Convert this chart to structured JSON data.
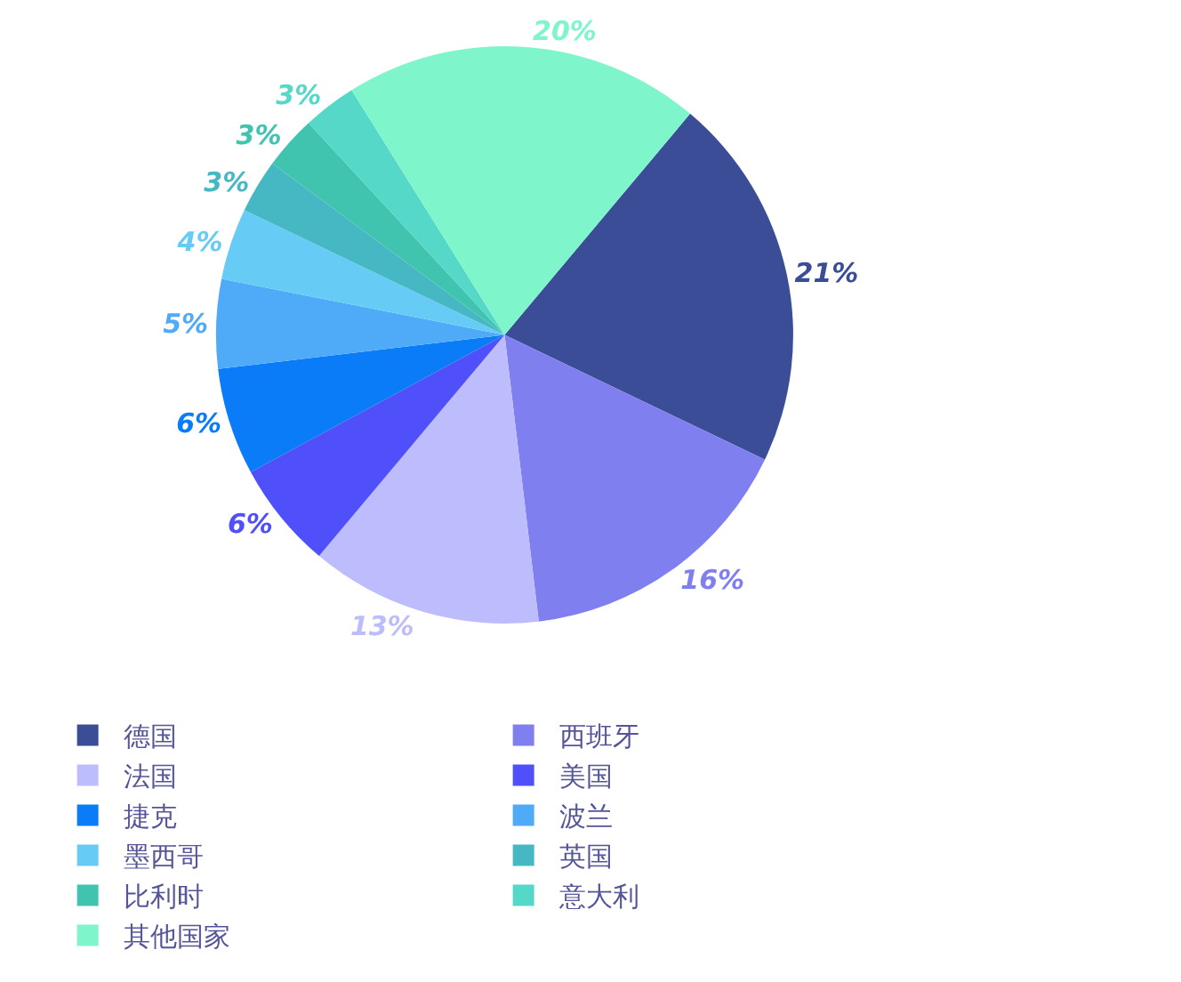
{
  "chart_data": {
    "type": "pie",
    "categories": [
      "德国",
      "西班牙",
      "法国",
      "美国",
      "捷克",
      "波兰",
      "墨西哥",
      "英国",
      "比利时",
      "意大利",
      "其他国家"
    ],
    "values": [
      21,
      16,
      13,
      6,
      6,
      5,
      4,
      3,
      3,
      3,
      20
    ],
    "colors": [
      "#3a4d96",
      "#7f7ff0",
      "#bdbdfd",
      "#5050fa",
      "#0a7cf8",
      "#4fabf8",
      "#66ccf5",
      "#46b8c4",
      "#40c4b0",
      "#55d8c8",
      "#7ff5cc"
    ],
    "value_labels": [
      "21%",
      "16%",
      "13%",
      "6%",
      "6%",
      "5%",
      "4%",
      "3%",
      "3%",
      "3%",
      "20%"
    ],
    "legend": "bottom"
  }
}
